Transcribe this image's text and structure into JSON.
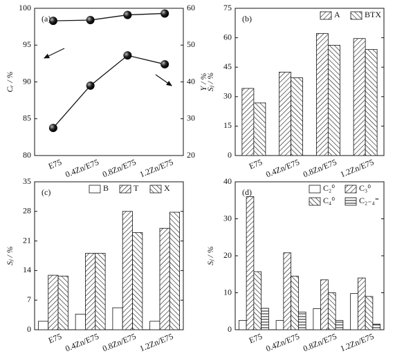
{
  "chart_data": [
    {
      "type": "line",
      "title": "(a)",
      "ylabel": "Cᵣ / %",
      "y2label": "Y / %",
      "categories": [
        "E75",
        "0.4Zn/E75",
        "0.8Zn/E75",
        "1.2Zn/E75"
      ],
      "ylim": [
        80,
        100
      ],
      "yticks": [
        80,
        85,
        90,
        95,
        100
      ],
      "y2lim": [
        20,
        60
      ],
      "y2ticks": [
        20,
        30,
        40,
        50,
        60
      ],
      "series": [
        {
          "color": "#111111",
          "values": [
            98.3,
            98.4,
            99.1,
            99.3
          ]
        },
        {
          "color": "#111111",
          "axis": "y2",
          "values": [
            27.5,
            39.0,
            47.2,
            44.8
          ]
        }
      ]
    },
    {
      "type": "bar",
      "title": "(b)",
      "ylabel": "Sⱼ / %",
      "categories": [
        "E75",
        "0.4Zn/E75",
        "0.8Zn/E75",
        "1.2Zn/E75"
      ],
      "ylim": [
        0,
        75
      ],
      "yticks": [
        0,
        15,
        30,
        45,
        60,
        75
      ],
      "legend": "upper right",
      "series": [
        {
          "name": "A",
          "pattern": "forward",
          "values": [
            34.2,
            42.5,
            62.2,
            59.6
          ]
        },
        {
          "name": "BTX",
          "pattern": "back",
          "values": [
            26.8,
            39.6,
            56.2,
            54.0
          ]
        }
      ]
    },
    {
      "type": "bar",
      "title": "(c)",
      "ylabel": "Sⱼ / %",
      "categories": [
        "E75",
        "0.4Zn/E75",
        "0.8Zn/E75",
        "1.2Zn/E75"
      ],
      "ylim": [
        0,
        35
      ],
      "yticks": [
        0,
        7,
        14,
        21,
        28,
        35
      ],
      "legend": "upper right",
      "series": [
        {
          "name": "B",
          "pattern": "none",
          "values": [
            2.0,
            3.7,
            5.2,
            2.0
          ]
        },
        {
          "name": "T",
          "pattern": "forward",
          "values": [
            12.9,
            18.1,
            28.0,
            24.0
          ]
        },
        {
          "name": "X",
          "pattern": "back",
          "values": [
            12.7,
            18.1,
            23.0,
            27.8
          ]
        }
      ]
    },
    {
      "type": "bar",
      "title": "(d)",
      "ylabel": "Sⱼ / %",
      "categories": [
        "E75",
        "0.4Zn/E75",
        "0.8Zn/E75",
        "1.2Zn/E75"
      ],
      "ylim": [
        0,
        40
      ],
      "yticks": [
        0,
        10,
        20,
        30,
        40
      ],
      "legend": "upper right",
      "series": [
        {
          "name": "C₂⁰",
          "pattern": "none",
          "values": [
            2.5,
            2.5,
            5.7,
            9.8
          ]
        },
        {
          "name": "C₃⁰",
          "pattern": "forward",
          "values": [
            36.0,
            20.8,
            13.5,
            14.0
          ]
        },
        {
          "name": "C₄⁰",
          "pattern": "back",
          "values": [
            15.7,
            14.5,
            10.0,
            9.0
          ]
        },
        {
          "name": "C₂₋₄⁼",
          "pattern": "horizontal",
          "values": [
            5.8,
            4.8,
            2.5,
            1.5
          ]
        }
      ]
    }
  ]
}
